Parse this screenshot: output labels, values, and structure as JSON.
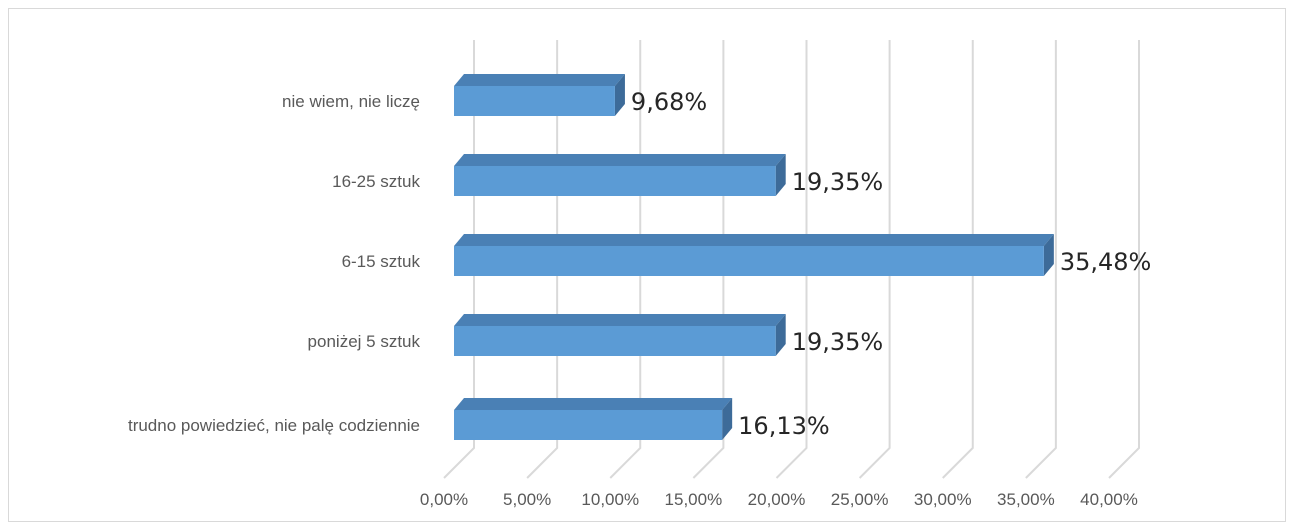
{
  "chart_data": {
    "type": "bar",
    "orientation": "horizontal",
    "style": "3d",
    "categories": [
      "trudno powiedzieć, nie palę codziennie",
      "poniżej 5 sztuk",
      "6-15 sztuk",
      "16-25 sztuk",
      "nie wiem, nie liczę"
    ],
    "values": [
      16.13,
      19.35,
      35.48,
      19.35,
      9.68
    ],
    "data_labels": [
      "16,13%",
      "19,35%",
      "35,48%",
      "19,35%",
      "9,68%"
    ],
    "x_ticks": [
      "0,00%",
      "5,00%",
      "10,00%",
      "15,00%",
      "20,00%",
      "25,00%",
      "30,00%",
      "35,00%",
      "40,00%"
    ],
    "xlim": [
      0,
      40
    ],
    "grid": true,
    "colors": {
      "bar_front": "#5b9bd5",
      "bar_top": "#4a80b5",
      "bar_side": "#3d6b99",
      "grid": "#d9d9d9"
    }
  }
}
